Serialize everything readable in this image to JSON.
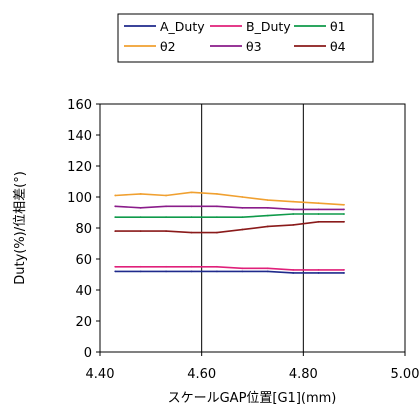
{
  "chart_data": {
    "type": "line",
    "xlabel": "スケールGAP位置[G1](mm)",
    "ylabel": "Duty(%)/位相差(°)",
    "xlim": [
      4.4,
      5.0
    ],
    "ylim": [
      0,
      160
    ],
    "x_ticks": [
      "4.40",
      "4.60",
      "4.80",
      "5.00"
    ],
    "y_ticks": [
      "0",
      "20",
      "40",
      "60",
      "80",
      "100",
      "120",
      "140",
      "160"
    ],
    "grid": "vertical",
    "legend_position": "top",
    "x": [
      4.43,
      4.48,
      4.53,
      4.58,
      4.63,
      4.68,
      4.73,
      4.78,
      4.83,
      4.88
    ],
    "series": [
      {
        "name": "A_Duty",
        "color": "#1f2a8c",
        "values": [
          52,
          52,
          52,
          52,
          52,
          52,
          52,
          51,
          51,
          51
        ]
      },
      {
        "name": "B_Duty",
        "color": "#e0207a",
        "values": [
          55,
          55,
          55,
          55,
          55,
          54,
          54,
          53,
          53,
          53
        ]
      },
      {
        "name": "θ1",
        "color": "#0f9a4a",
        "values": [
          87,
          87,
          87,
          87,
          87,
          87,
          88,
          89,
          89,
          89
        ]
      },
      {
        "name": "θ2",
        "color": "#f0a030",
        "values": [
          101,
          102,
          101,
          103,
          102,
          100,
          98,
          97,
          96,
          95
        ]
      },
      {
        "name": "θ3",
        "color": "#8a1c8a",
        "values": [
          94,
          93,
          94,
          94,
          94,
          93,
          93,
          92,
          92,
          92
        ]
      },
      {
        "name": "θ4",
        "color": "#8a1a1a",
        "values": [
          78,
          78,
          78,
          77,
          77,
          79,
          81,
          82,
          84,
          84
        ]
      }
    ]
  }
}
